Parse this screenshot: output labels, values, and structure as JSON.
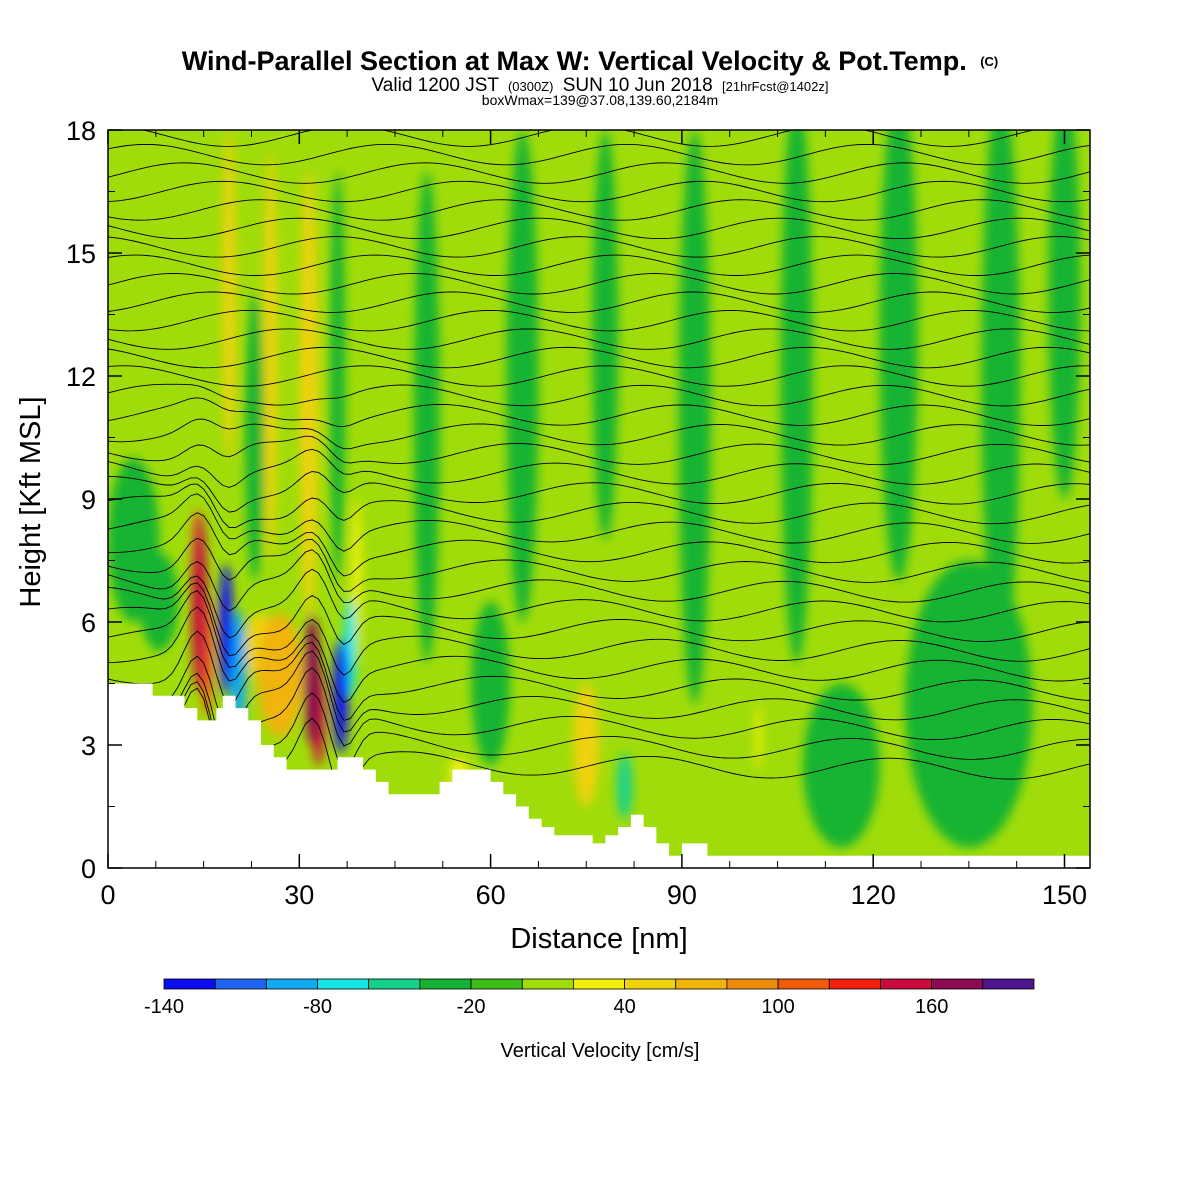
{
  "title": {
    "main": "Wind-Parallel Section at Max W: Vertical Velocity & Pot.Temp.",
    "main_suffix": "(C)",
    "valid_prefix": "Valid 1200 JST",
    "valid_zulu": "(0300Z)",
    "valid_date": "SUN 10 Jun 2018",
    "forecast": "[21hrFcst@1402z]",
    "box": "boxWmax=139@37.08,139.60,2184m"
  },
  "chart_data": {
    "type": "heatmap",
    "xlabel": "Distance [nm]",
    "ylabel": "Height [Kft MSL]",
    "xlim": [
      0,
      154
    ],
    "ylim": [
      0,
      18
    ],
    "x_ticks": [
      0,
      30,
      60,
      90,
      120,
      150
    ],
    "y_ticks": [
      0,
      3,
      6,
      9,
      12,
      15,
      18
    ],
    "grid": false,
    "colorbar": {
      "label": "Vertical Velocity [cm/s]",
      "levels": [
        -140,
        -120,
        -100,
        -80,
        -60,
        -40,
        -20,
        0,
        20,
        40,
        60,
        80,
        100,
        120,
        140,
        160,
        180
      ],
      "tick_labels": [
        -140,
        -80,
        -20,
        40,
        100,
        160
      ],
      "colors": [
        "#0c0cf0",
        "#1e64f0",
        "#0faaf0",
        "#14e6e6",
        "#14d28c",
        "#14b432",
        "#3cbe14",
        "#a0dc0a",
        "#f0f00a",
        "#f0d20a",
        "#f0b40a",
        "#f08c0a",
        "#f05a0a",
        "#f01e0a",
        "#c80a3c",
        "#8c0a50",
        "#50148c"
      ]
    },
    "terrain_kft": [
      [
        0,
        4.5
      ],
      [
        6,
        4.5
      ],
      [
        7,
        4.2
      ],
      [
        10,
        4.2
      ],
      [
        12,
        3.9
      ],
      [
        14,
        3.6
      ],
      [
        16,
        3.6
      ],
      [
        17,
        3.9
      ],
      [
        18,
        4.2
      ],
      [
        19,
        4.2
      ],
      [
        20,
        3.9
      ],
      [
        22,
        3.6
      ],
      [
        24,
        3.0
      ],
      [
        26,
        2.7
      ],
      [
        28,
        2.4
      ],
      [
        30,
        2.4
      ],
      [
        32,
        2.4
      ],
      [
        34,
        2.4
      ],
      [
        36,
        2.7
      ],
      [
        38,
        2.7
      ],
      [
        40,
        2.4
      ],
      [
        42,
        2.1
      ],
      [
        44,
        1.8
      ],
      [
        46,
        1.8
      ],
      [
        50,
        1.8
      ],
      [
        52,
        2.1
      ],
      [
        54,
        2.4
      ],
      [
        58,
        2.4
      ],
      [
        60,
        2.1
      ],
      [
        62,
        1.8
      ],
      [
        64,
        1.5
      ],
      [
        66,
        1.2
      ],
      [
        68,
        1.0
      ],
      [
        70,
        0.8
      ],
      [
        72,
        0.8
      ],
      [
        74,
        0.8
      ],
      [
        76,
        0.6
      ],
      [
        78,
        0.8
      ],
      [
        80,
        1.0
      ],
      [
        82,
        1.3
      ],
      [
        84,
        1.0
      ],
      [
        86,
        0.6
      ],
      [
        88,
        0.3
      ],
      [
        90,
        0.6
      ],
      [
        92,
        0.6
      ],
      [
        94,
        0.3
      ],
      [
        154,
        0.3
      ]
    ],
    "w_cells": [
      {
        "x": 14.3,
        "z": 6.5,
        "dx": 1.2,
        "dz": 2.2,
        "w": 140
      },
      {
        "x": 14.0,
        "z": 7.6,
        "dx": 0.9,
        "dz": 1.2,
        "w": 90
      },
      {
        "x": 15.5,
        "z": 5.2,
        "dx": 1.0,
        "dz": 1.5,
        "w": 110
      },
      {
        "x": 18.5,
        "z": 5.8,
        "dx": 1.1,
        "dz": 1.6,
        "w": -130
      },
      {
        "x": 20.5,
        "z": 4.8,
        "dx": 1.2,
        "dz": 1.5,
        "w": -90
      },
      {
        "x": 27.0,
        "z": 4.7,
        "dx": 3.6,
        "dz": 1.5,
        "w": 65
      },
      {
        "x": 24.0,
        "z": 5.4,
        "dx": 2.5,
        "dz": 0.8,
        "w": 45
      },
      {
        "x": 32.0,
        "z": 4.6,
        "dx": 1.3,
        "dz": 1.6,
        "w": 175
      },
      {
        "x": 33.0,
        "z": 3.7,
        "dx": 1.0,
        "dz": 1.2,
        "w": 150
      },
      {
        "x": 36.5,
        "z": 4.2,
        "dx": 1.2,
        "dz": 1.4,
        "w": -130
      },
      {
        "x": 38.0,
        "z": 5.4,
        "dx": 1.0,
        "dz": 1.2,
        "w": -70
      },
      {
        "x": 19.0,
        "z": 14.0,
        "dx": 1.0,
        "dz": 4.0,
        "w": 45
      },
      {
        "x": 23.0,
        "z": 10.5,
        "dx": 1.5,
        "dz": 3.5,
        "w": -25
      },
      {
        "x": 25.5,
        "z": 12.5,
        "dx": 1.0,
        "dz": 5.0,
        "w": 40
      },
      {
        "x": 31.5,
        "z": 11.5,
        "dx": 1.4,
        "dz": 5.5,
        "w": 45
      },
      {
        "x": 36.0,
        "z": 12.0,
        "dx": 1.2,
        "dz": 5.0,
        "w": -25
      },
      {
        "x": 39.0,
        "z": 7.0,
        "dx": 0.8,
        "dz": 2.0,
        "w": 35
      },
      {
        "x": 75.0,
        "z": 3.0,
        "dx": 2.0,
        "dz": 1.5,
        "w": 45
      },
      {
        "x": 81.0,
        "z": 2.0,
        "dx": 1.2,
        "dz": 0.8,
        "w": -60
      },
      {
        "x": 55.0,
        "z": 2.3,
        "dx": 1.5,
        "dz": 0.4,
        "w": 35
      },
      {
        "x": 102.0,
        "z": 3.2,
        "dx": 0.5,
        "dz": 0.8,
        "w": 35
      },
      {
        "x": 4.0,
        "z": 8.0,
        "dx": 4.0,
        "dz": 2.0,
        "w": -25
      },
      {
        "x": 8.0,
        "z": 6.5,
        "dx": 3.0,
        "dz": 1.2,
        "w": -40
      },
      {
        "x": 50.0,
        "z": 11.0,
        "dx": 2.0,
        "dz": 6.0,
        "w": -25
      },
      {
        "x": 65.0,
        "z": 12.0,
        "dx": 2.5,
        "dz": 6.0,
        "w": -25
      },
      {
        "x": 78.0,
        "z": 13.0,
        "dx": 2.0,
        "dz": 5.0,
        "w": -25
      },
      {
        "x": 92.0,
        "z": 11.0,
        "dx": 2.5,
        "dz": 7.0,
        "w": -25
      },
      {
        "x": 108.0,
        "z": 12.0,
        "dx": 2.5,
        "dz": 7.0,
        "w": -25
      },
      {
        "x": 124.0,
        "z": 13.0,
        "dx": 3.0,
        "dz": 6.0,
        "w": -25
      },
      {
        "x": 140.0,
        "z": 12.0,
        "dx": 3.0,
        "dz": 7.0,
        "w": -25
      },
      {
        "x": 150.0,
        "z": 14.0,
        "dx": 2.5,
        "dz": 5.0,
        "w": -25
      },
      {
        "x": 135.0,
        "z": 4.0,
        "dx": 10.0,
        "dz": 3.5,
        "w": -25
      },
      {
        "x": 115.0,
        "z": 2.5,
        "dx": 6.0,
        "dz": 2.0,
        "w": -25
      },
      {
        "x": 60.0,
        "z": 4.5,
        "dx": 3.0,
        "dz": 2.0,
        "w": -25
      }
    ]
  }
}
